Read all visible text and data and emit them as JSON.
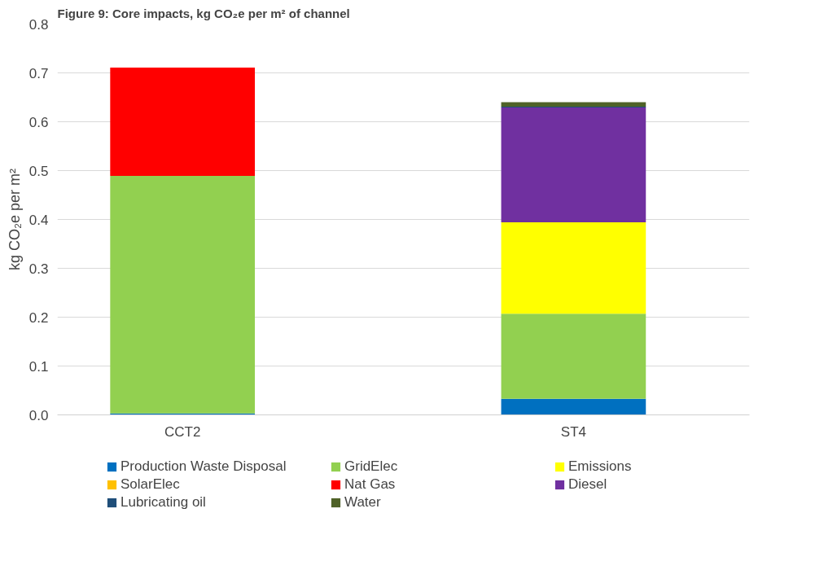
{
  "chart_data": {
    "type": "bar",
    "title": "Figure 9: Core impacts, kg CO₂e per m² of channel",
    "ylabel": "kg CO₂e per m²",
    "categories": [
      "CCT2",
      "ST4"
    ],
    "stacked": true,
    "series": [
      {
        "name": "Production Waste Disposal",
        "color": "#0070c0",
        "values": [
          0.003,
          0.033
        ]
      },
      {
        "name": "GridElec",
        "color": "#92d050",
        "values": [
          0.486,
          0.174
        ]
      },
      {
        "name": "Emissions",
        "color": "#ffff00",
        "values": [
          0,
          0.187
        ]
      },
      {
        "name": "SolarElec",
        "color": "#ffc000",
        "values": [
          0,
          0
        ]
      },
      {
        "name": "Nat Gas",
        "color": "#ff0000",
        "values": [
          0.222,
          0
        ]
      },
      {
        "name": "Diesel",
        "color": "#7030a0",
        "values": [
          0,
          0.235
        ]
      },
      {
        "name": "Lubricating oil",
        "color": "#1f4e79",
        "values": [
          0,
          0.002
        ]
      },
      {
        "name": "Water",
        "color": "#4f6228",
        "values": [
          0,
          0.009
        ]
      }
    ],
    "ylim": [
      0,
      0.8
    ],
    "yticks": [
      {
        "value": 0,
        "label": "0.0"
      },
      0.1,
      0.2,
      0.3,
      0.4,
      0.5,
      0.6,
      0.7,
      0.8
    ],
    "grid": "y",
    "legend": "bottom"
  }
}
